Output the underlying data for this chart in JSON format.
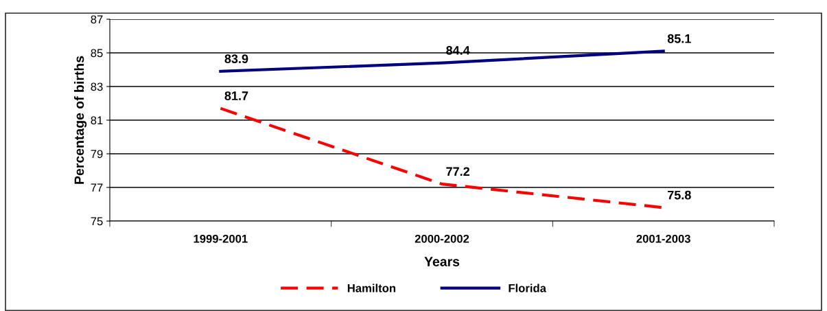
{
  "chart_data": {
    "type": "line",
    "xlabel": "Years",
    "ylabel": "Percentage of births",
    "categories": [
      "1999-2001",
      "2000-2002",
      "2001-2003"
    ],
    "series": [
      {
        "name": "Hamilton",
        "color": "#ff0000",
        "line_style": "dashed",
        "values": [
          81.7,
          77.2,
          75.8
        ]
      },
      {
        "name": "Florida",
        "color": "#000080",
        "line_style": "solid",
        "values": [
          83.9,
          84.4,
          85.1
        ]
      }
    ],
    "ylim": [
      75,
      87
    ],
    "yticks": [
      75,
      77,
      79,
      81,
      83,
      85,
      87
    ],
    "grid": "y",
    "legend": "bottom",
    "data_labels": true,
    "marker": "none"
  }
}
